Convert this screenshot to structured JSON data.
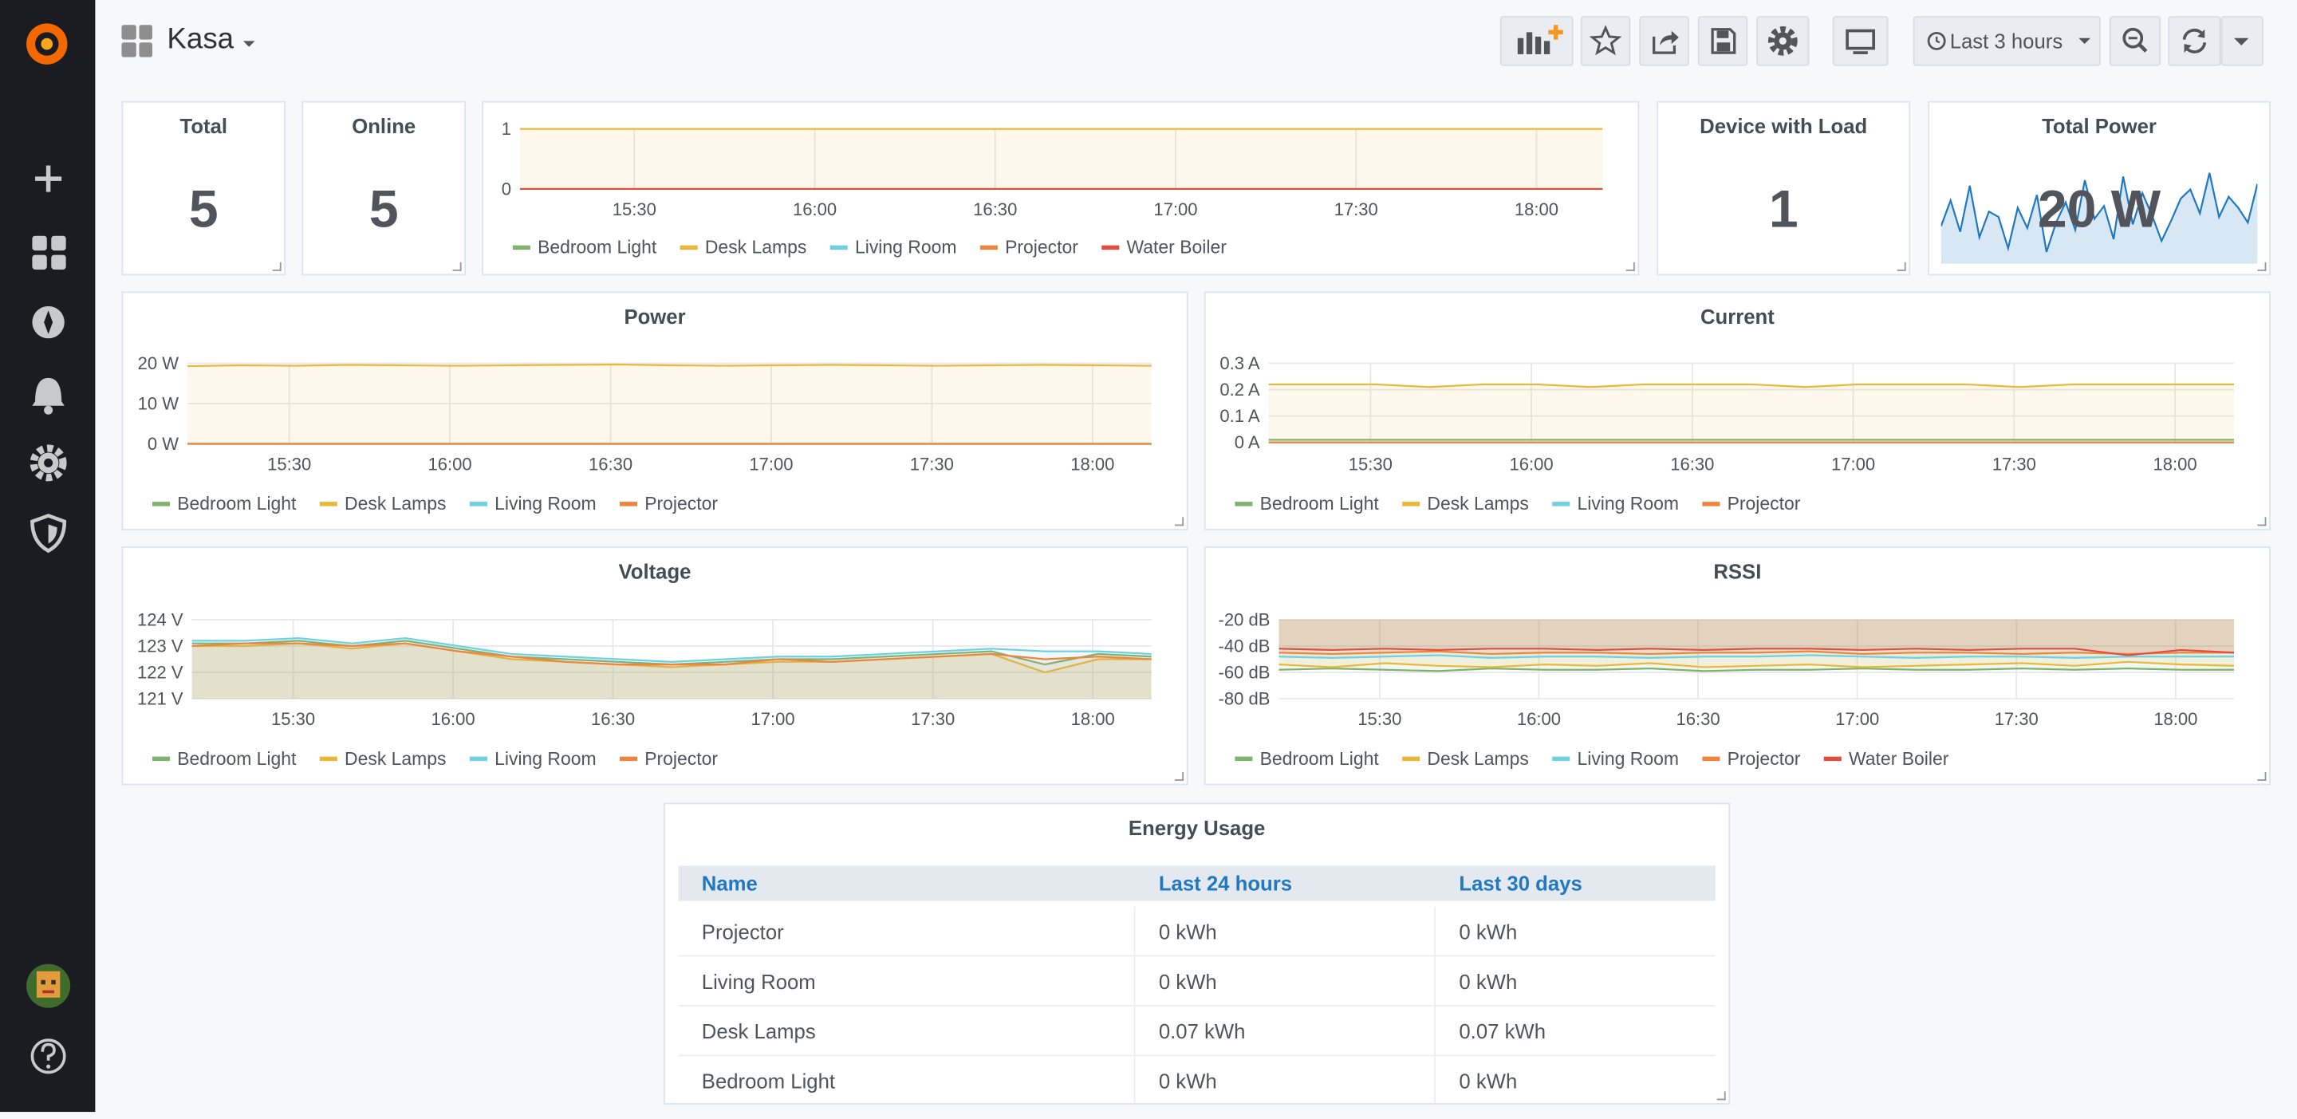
{
  "header": {
    "title": "Kasa",
    "time_range": "Last 3 hours"
  },
  "stat_panels": [
    {
      "title": "Total",
      "value": 5
    },
    {
      "title": "Online",
      "value": 5
    },
    {
      "title": "Device with Load",
      "value": 1
    },
    {
      "title": "Total Power",
      "value": "20 W",
      "sparkline": [
        20.4,
        21.8,
        20.1,
        22.6,
        19.8,
        21.2,
        20.9,
        19.2,
        21.4,
        20.3,
        22.1,
        19.0,
        20.6,
        21.7,
        20.2,
        22.9,
        20.8,
        21.5,
        19.7,
        23.1,
        20.5,
        22.2,
        21.0,
        19.6,
        20.7,
        21.9,
        22.4,
        21.1,
        23.3,
        20.9,
        22.0,
        21.4,
        20.6,
        22.7
      ]
    }
  ],
  "chart_data": [
    {
      "type": "line",
      "x": [
        "15:11",
        "15:21",
        "15:31",
        "15:41",
        "15:51",
        "16:01",
        "16:11",
        "16:21",
        "16:31",
        "16:41",
        "16:51",
        "17:01",
        "17:11",
        "17:21",
        "17:31",
        "17:41",
        "17:51",
        "18:01",
        "18:11"
      ],
      "xlim": [
        "15:11",
        "18:11"
      ],
      "xticks": [
        "15:30",
        "16:00",
        "16:30",
        "17:00",
        "17:30",
        "18:00"
      ],
      "ylim": [
        0,
        1
      ],
      "yticks": [
        0,
        1
      ],
      "grid": true,
      "fill": true,
      "series": [
        {
          "name": "Bedroom Light",
          "color": "#7eb26d",
          "values": [
            0,
            0,
            0,
            0,
            0,
            0,
            0,
            0,
            0,
            0,
            0,
            0,
            0,
            0,
            0,
            0,
            0,
            0,
            0
          ]
        },
        {
          "name": "Desk Lamps",
          "color": "#eab839",
          "values": [
            1,
            1,
            1,
            1,
            1,
            1,
            1,
            1,
            1,
            1,
            1,
            1,
            1,
            1,
            1,
            1,
            1,
            1,
            1
          ]
        },
        {
          "name": "Living Room",
          "color": "#6ed0e0",
          "values": [
            0,
            0,
            0,
            0,
            0,
            0,
            0,
            0,
            0,
            0,
            0,
            0,
            0,
            0,
            0,
            0,
            0,
            0,
            0
          ]
        },
        {
          "name": "Projector",
          "color": "#ef843c",
          "values": [
            0,
            0,
            0,
            0,
            0,
            0,
            0,
            0,
            0,
            0,
            0,
            0,
            0,
            0,
            0,
            0,
            0,
            0,
            0
          ]
        },
        {
          "name": "Water Boiler",
          "color": "#e24d42",
          "values": [
            0,
            0,
            0,
            0,
            0,
            0,
            0,
            0,
            0,
            0,
            0,
            0,
            0,
            0,
            0,
            0,
            0,
            0,
            0
          ]
        }
      ]
    },
    {
      "type": "line",
      "title": "Power",
      "x": [
        "15:11",
        "15:21",
        "15:31",
        "15:41",
        "15:51",
        "16:01",
        "16:11",
        "16:21",
        "16:31",
        "16:41",
        "16:51",
        "17:01",
        "17:11",
        "17:21",
        "17:31",
        "17:41",
        "17:51",
        "18:01",
        "18:11"
      ],
      "xlim": [
        "15:11",
        "18:11"
      ],
      "xticks": [
        "15:30",
        "16:00",
        "16:30",
        "17:00",
        "17:30",
        "18:00"
      ],
      "ylim": [
        0,
        20
      ],
      "yticks": [
        {
          "value": 0,
          "label": "0 W"
        },
        {
          "value": 10,
          "label": "10 W"
        },
        {
          "value": 20,
          "label": "20 W"
        }
      ],
      "grid": true,
      "fill": true,
      "series": [
        {
          "name": "Bedroom Light",
          "color": "#7eb26d",
          "values": [
            0,
            0,
            0,
            0,
            0,
            0,
            0,
            0,
            0,
            0,
            0,
            0,
            0,
            0,
            0,
            0,
            0,
            0,
            0
          ]
        },
        {
          "name": "Desk Lamps",
          "color": "#eab839",
          "values": [
            19.3,
            19.5,
            19.4,
            19.6,
            19.5,
            19.4,
            19.5,
            19.6,
            19.7,
            19.5,
            19.4,
            19.5,
            19.6,
            19.5,
            19.4,
            19.5,
            19.6,
            19.5,
            19.4
          ]
        },
        {
          "name": "Living Room",
          "color": "#6ed0e0",
          "values": [
            0,
            0,
            0,
            0,
            0,
            0,
            0,
            0,
            0,
            0,
            0,
            0,
            0,
            0,
            0,
            0,
            0,
            0,
            0
          ]
        },
        {
          "name": "Projector",
          "color": "#ef843c",
          "values": [
            0,
            0,
            0,
            0,
            0,
            0,
            0,
            0,
            0,
            0,
            0,
            0,
            0,
            0,
            0,
            0,
            0,
            0,
            0
          ]
        }
      ]
    },
    {
      "type": "line",
      "title": "Current",
      "x": [
        "15:11",
        "15:21",
        "15:31",
        "15:41",
        "15:51",
        "16:01",
        "16:11",
        "16:21",
        "16:31",
        "16:41",
        "16:51",
        "17:01",
        "17:11",
        "17:21",
        "17:31",
        "17:41",
        "17:51",
        "18:01",
        "18:11"
      ],
      "xlim": [
        "15:11",
        "18:11"
      ],
      "xticks": [
        "15:30",
        "16:00",
        "16:30",
        "17:00",
        "17:30",
        "18:00"
      ],
      "ylim": [
        0,
        0.3
      ],
      "yticks": [
        {
          "value": 0,
          "label": "0 A"
        },
        {
          "value": 0.1,
          "label": "0.1 A"
        },
        {
          "value": 0.2,
          "label": "0.2 A"
        },
        {
          "value": 0.3,
          "label": "0.3 A"
        }
      ],
      "grid": true,
      "fill": true,
      "series": [
        {
          "name": "Bedroom Light",
          "color": "#7eb26d",
          "values": [
            0.01,
            0.01,
            0.01,
            0.01,
            0.01,
            0.01,
            0.01,
            0.01,
            0.01,
            0.01,
            0.01,
            0.01,
            0.01,
            0.01,
            0.01,
            0.01,
            0.01,
            0.01,
            0.01
          ]
        },
        {
          "name": "Desk Lamps",
          "color": "#eab839",
          "values": [
            0.22,
            0.22,
            0.22,
            0.21,
            0.22,
            0.22,
            0.21,
            0.22,
            0.22,
            0.22,
            0.21,
            0.22,
            0.22,
            0.22,
            0.21,
            0.22,
            0.22,
            0.22,
            0.22
          ]
        },
        {
          "name": "Living Room",
          "color": "#6ed0e0",
          "values": [
            0,
            0,
            0,
            0,
            0,
            0,
            0,
            0,
            0,
            0,
            0,
            0,
            0,
            0,
            0,
            0,
            0,
            0,
            0
          ]
        },
        {
          "name": "Projector",
          "color": "#ef843c",
          "values": [
            0,
            0,
            0,
            0,
            0,
            0,
            0,
            0,
            0,
            0,
            0,
            0,
            0,
            0,
            0,
            0,
            0,
            0,
            0
          ]
        }
      ]
    },
    {
      "type": "line",
      "title": "Voltage",
      "x": [
        "15:11",
        "15:21",
        "15:31",
        "15:41",
        "15:51",
        "16:01",
        "16:11",
        "16:21",
        "16:31",
        "16:41",
        "16:51",
        "17:01",
        "17:11",
        "17:21",
        "17:31",
        "17:41",
        "17:51",
        "18:01",
        "18:11"
      ],
      "xlim": [
        "15:11",
        "18:11"
      ],
      "xticks": [
        "15:30",
        "16:00",
        "16:30",
        "17:00",
        "17:30",
        "18:00"
      ],
      "ylim": [
        121,
        124
      ],
      "yticks": [
        {
          "value": 121,
          "label": "121 V"
        },
        {
          "value": 122,
          "label": "122 V"
        },
        {
          "value": 123,
          "label": "123 V"
        },
        {
          "value": 124,
          "label": "124 V"
        }
      ],
      "grid": true,
      "fill": true,
      "series": [
        {
          "name": "Bedroom Light",
          "color": "#7eb26d",
          "values": [
            123.1,
            123.1,
            123.2,
            123.0,
            123.2,
            122.9,
            122.6,
            122.5,
            122.4,
            122.3,
            122.4,
            122.5,
            122.5,
            122.6,
            122.7,
            122.8,
            122.3,
            122.7,
            122.6
          ]
        },
        {
          "name": "Desk Lamps",
          "color": "#eab839",
          "values": [
            123.0,
            123.0,
            123.1,
            122.9,
            123.1,
            122.8,
            122.5,
            122.4,
            122.3,
            122.2,
            122.3,
            122.4,
            122.4,
            122.5,
            122.6,
            122.7,
            122.0,
            122.5,
            122.5
          ]
        },
        {
          "name": "Living Room",
          "color": "#6ed0e0",
          "values": [
            123.2,
            123.2,
            123.3,
            123.1,
            123.3,
            123.0,
            122.7,
            122.6,
            122.5,
            122.4,
            122.5,
            122.6,
            122.6,
            122.7,
            122.8,
            122.9,
            122.8,
            122.8,
            122.7
          ]
        },
        {
          "name": "Projector",
          "color": "#ef843c",
          "values": [
            123.0,
            123.1,
            123.1,
            123.0,
            123.1,
            122.8,
            122.6,
            122.4,
            122.3,
            122.3,
            122.3,
            122.5,
            122.4,
            122.5,
            122.6,
            122.7,
            122.5,
            122.6,
            122.5
          ]
        }
      ]
    },
    {
      "type": "line",
      "title": "RSSI",
      "x": [
        "15:11",
        "15:21",
        "15:31",
        "15:41",
        "15:51",
        "16:01",
        "16:11",
        "16:21",
        "16:31",
        "16:41",
        "16:51",
        "17:01",
        "17:11",
        "17:21",
        "17:31",
        "17:41",
        "17:51",
        "18:01",
        "18:11"
      ],
      "xlim": [
        "15:11",
        "18:11"
      ],
      "xticks": [
        "15:30",
        "16:00",
        "16:30",
        "17:00",
        "17:30",
        "18:00"
      ],
      "ylim": [
        -80,
        -20
      ],
      "yticks": [
        {
          "value": -80,
          "label": "-80 dB"
        },
        {
          "value": -60,
          "label": "-60 dB"
        },
        {
          "value": -40,
          "label": "-40 dB"
        },
        {
          "value": -20,
          "label": "-20 dB"
        }
      ],
      "grid": true,
      "fill": true,
      "series": [
        {
          "name": "Bedroom Light",
          "color": "#7eb26d",
          "values": [
            -58,
            -57,
            -58,
            -59,
            -57,
            -58,
            -58,
            -57,
            -59,
            -58,
            -58,
            -57,
            -58,
            -58,
            -57,
            -58,
            -57,
            -58,
            -58
          ]
        },
        {
          "name": "Desk Lamps",
          "color": "#eab839",
          "values": [
            -54,
            -56,
            -53,
            -55,
            -56,
            -54,
            -55,
            -53,
            -56,
            -55,
            -54,
            -56,
            -55,
            -54,
            -53,
            -55,
            -52,
            -54,
            -55
          ]
        },
        {
          "name": "Living Room",
          "color": "#6ed0e0",
          "values": [
            -48,
            -49,
            -48,
            -47,
            -49,
            -48,
            -48,
            -49,
            -48,
            -48,
            -47,
            -48,
            -49,
            -48,
            -48,
            -49,
            -48,
            -48,
            -48
          ]
        },
        {
          "name": "Projector",
          "color": "#ef843c",
          "values": [
            -45,
            -46,
            -45,
            -44,
            -46,
            -45,
            -45,
            -46,
            -45,
            -45,
            -44,
            -46,
            -45,
            -45,
            -46,
            -45,
            -46,
            -45,
            -45
          ]
        },
        {
          "name": "Water Boiler",
          "color": "#e24d42",
          "values": [
            -42,
            -43,
            -42,
            -43,
            -42,
            -42,
            -43,
            -42,
            -43,
            -42,
            -42,
            -43,
            -42,
            -43,
            -42,
            -42,
            -47,
            -43,
            -45
          ]
        }
      ]
    }
  ],
  "table": {
    "title": "Energy Usage",
    "columns": [
      "Name",
      "Last 24 hours",
      "Last 30 days"
    ],
    "rows": [
      [
        "Projector",
        "0 kWh",
        "0 kWh"
      ],
      [
        "Living Room",
        "0 kWh",
        "0 kWh"
      ],
      [
        "Desk Lamps",
        "0.07 kWh",
        "0.07 kWh"
      ],
      [
        "Bedroom Light",
        "0 kWh",
        "0 kWh"
      ]
    ]
  }
}
